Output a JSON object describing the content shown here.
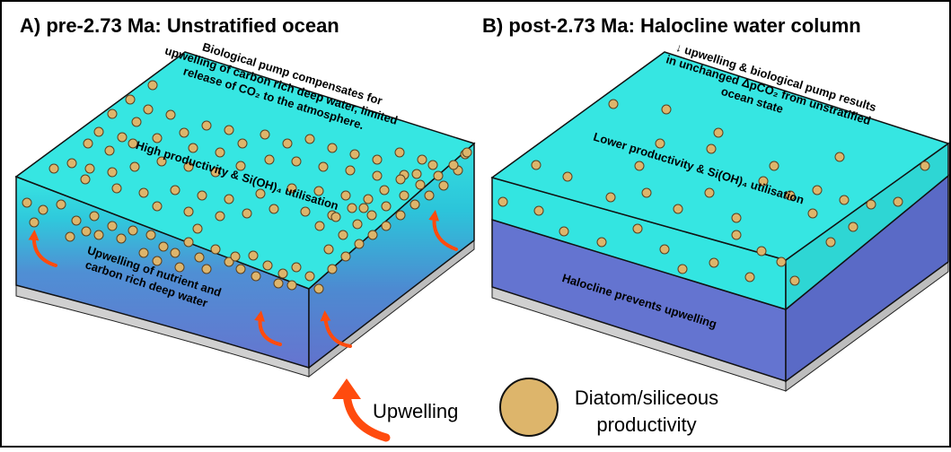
{
  "panel_a": {
    "title": "A) pre-2.73 Ma: Unstratified ocean",
    "pump_text": [
      "Biological pump compensates for",
      "upwelling of carbon rich deep water, limited",
      "release of CO₂ to the atmosphere."
    ],
    "productivity_text": "High productivity & Si(OH)₄ utilisation",
    "upwelling_text": [
      "Upwelling of nutrient and",
      "carbon rich deep water"
    ]
  },
  "panel_b": {
    "title": "B) post-2.73 Ma: Halocline water column",
    "pump_text": [
      "↓ upwelling & biological pump results",
      "in unchanged ΔpCO₂ from unstratified",
      "ocean state"
    ],
    "productivity_text": "Lower productivity & Si(OH)₄ utilisation",
    "halocline_text": "Halocline prevents upwelling"
  },
  "legend": {
    "upwelling_label": "Upwelling",
    "diatom_label": [
      "Diatom/siliceous",
      "productivity"
    ]
  },
  "colors": {
    "surface_water": "#33e5e1",
    "deep_water": "#6474d0",
    "diatom": "#ddb56b",
    "arrow": "#ff4b0e",
    "seafloor": "#d0d0d0"
  }
}
